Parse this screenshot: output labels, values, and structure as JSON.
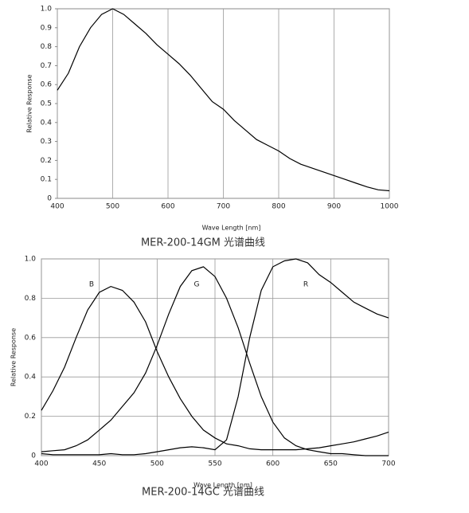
{
  "chart_data": [
    {
      "type": "line",
      "title": "MER-200-14GM 光谱曲线",
      "xlabel": "Wave Length [nm]",
      "ylabel": "Relative Response",
      "x": [
        400,
        420,
        440,
        460,
        480,
        500,
        520,
        540,
        560,
        580,
        600,
        620,
        640,
        660,
        680,
        700,
        720,
        740,
        760,
        780,
        800,
        820,
        840,
        860,
        880,
        900,
        920,
        940,
        960,
        980,
        1000
      ],
      "values": [
        0.57,
        0.66,
        0.8,
        0.9,
        0.97,
        1.0,
        0.97,
        0.92,
        0.87,
        0.81,
        0.76,
        0.71,
        0.65,
        0.58,
        0.51,
        0.47,
        0.41,
        0.36,
        0.31,
        0.28,
        0.25,
        0.21,
        0.18,
        0.16,
        0.14,
        0.12,
        0.1,
        0.08,
        0.06,
        0.045,
        0.04
      ],
      "color": "#000000",
      "xlim": [
        400,
        1000
      ],
      "xticks": [
        400,
        500,
        600,
        700,
        800,
        900,
        1000
      ],
      "ylim": [
        0,
        1
      ],
      "yticks": [
        0,
        0.1,
        0.2,
        0.3,
        0.4,
        0.5,
        0.6,
        0.7,
        0.8,
        0.9,
        {
          "value": 1,
          "label": "1.0"
        }
      ],
      "grid": "x"
    },
    {
      "type": "line",
      "title": "MER-200-14GC 光谱曲线",
      "xlabel": "Wave Length [nm]",
      "ylabel": "Relative Response",
      "x": [
        400,
        410,
        420,
        430,
        440,
        450,
        460,
        470,
        480,
        490,
        500,
        510,
        520,
        530,
        540,
        550,
        560,
        570,
        580,
        590,
        600,
        610,
        620,
        630,
        640,
        650,
        660,
        670,
        680,
        690,
        700
      ],
      "series": [
        {
          "name": "B",
          "color": "#000000",
          "values": [
            0.23,
            0.33,
            0.45,
            0.6,
            0.74,
            0.83,
            0.86,
            0.84,
            0.78,
            0.68,
            0.53,
            0.4,
            0.29,
            0.2,
            0.13,
            0.09,
            0.06,
            0.05,
            0.035,
            0.03,
            0.03,
            0.03,
            0.03,
            0.035,
            0.04,
            0.05,
            0.06,
            0.07,
            0.085,
            0.1,
            0.12
          ]
        },
        {
          "name": "G",
          "color": "#000000",
          "values": [
            0.02,
            0.025,
            0.03,
            0.05,
            0.08,
            0.13,
            0.18,
            0.25,
            0.32,
            0.42,
            0.56,
            0.72,
            0.86,
            0.94,
            0.96,
            0.91,
            0.8,
            0.65,
            0.47,
            0.3,
            0.17,
            0.09,
            0.05,
            0.03,
            0.02,
            0.01,
            0.01,
            0.005,
            0,
            0,
            0
          ]
        },
        {
          "name": "R",
          "color": "#000000",
          "values": [
            0.01,
            0.005,
            0.005,
            0.005,
            0.005,
            0.005,
            0.01,
            0.005,
            0.005,
            0.01,
            0.02,
            0.03,
            0.04,
            0.045,
            0.04,
            0.03,
            0.08,
            0.3,
            0.6,
            0.84,
            0.96,
            0.99,
            1.0,
            0.98,
            0.92,
            0.88,
            0.83,
            0.78,
            0.75,
            0.72,
            0.7
          ]
        }
      ],
      "xlim": [
        400,
        700
      ],
      "xticks": [
        400,
        450,
        500,
        550,
        600,
        650,
        700
      ],
      "ylim": [
        0,
        1
      ],
      "yticks": [
        0,
        0.2,
        0.4,
        0.6,
        0.8,
        {
          "value": 1,
          "label": "1.0"
        }
      ],
      "grid": "both"
    }
  ]
}
